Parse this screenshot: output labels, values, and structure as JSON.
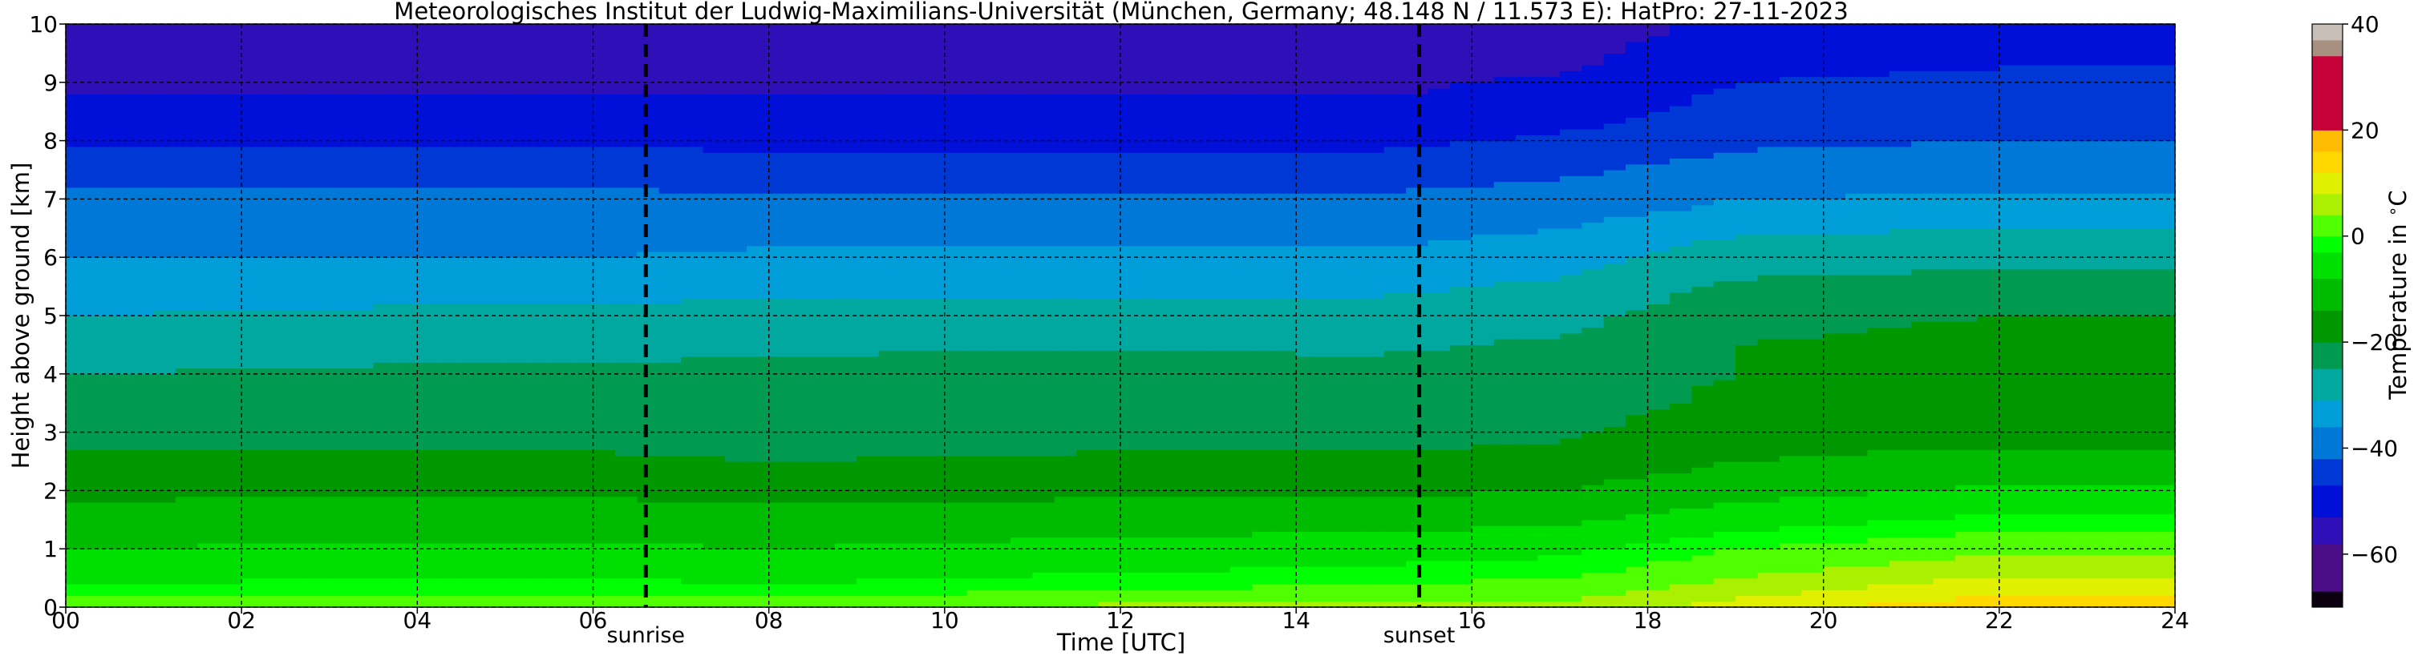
{
  "chart_data": {
    "type": "heatmap",
    "title": "Meteorologisches Institut der Ludwig-Maximilians-Universität (München, Germany; 48.148 N / 11.573 E):    HatPro: 27-11-2023",
    "xlabel": "Time [UTC]",
    "ylabel": "Height above ground [km]",
    "xlim": [
      0,
      24
    ],
    "ylim": [
      0,
      10
    ],
    "x_ticks": [
      0,
      2,
      4,
      6,
      8,
      10,
      12,
      14,
      16,
      18,
      20,
      22,
      24
    ],
    "x_tick_labels": [
      "00",
      "02",
      "04",
      "06",
      "08",
      "10",
      "12",
      "14",
      "16",
      "18",
      "20",
      "22",
      "24"
    ],
    "y_ticks": [
      0,
      1,
      2,
      3,
      4,
      5,
      6,
      7,
      8,
      9,
      10
    ],
    "y_tick_labels": [
      "0",
      "1",
      "2",
      "3",
      "4",
      "5",
      "6",
      "7",
      "8",
      "9",
      "10"
    ],
    "grid": true,
    "markers": [
      {
        "label": "sunrise",
        "x": 6.6
      },
      {
        "label": "sunset",
        "x": 15.4
      }
    ],
    "colorbar": {
      "label": "Temperature in $^\\circ$C",
      "range": [
        -70,
        40
      ],
      "ticks": [
        -60,
        -40,
        -20,
        0,
        20,
        40
      ],
      "tick_labels": [
        "−60",
        "−40",
        "−20",
        "0",
        "20",
        "40"
      ],
      "colors": [
        {
          "from": -70,
          "to": -67,
          "color": "#0a0010"
        },
        {
          "from": -67,
          "to": -58,
          "color": "#4b0d86"
        },
        {
          "from": -58,
          "to": -53,
          "color": "#2f10b8"
        },
        {
          "from": -53,
          "to": -47,
          "color": "#0010d8"
        },
        {
          "from": -47,
          "to": -42,
          "color": "#0038d6"
        },
        {
          "from": -42,
          "to": -36,
          "color": "#0078d8"
        },
        {
          "from": -36,
          "to": -31,
          "color": "#009ed8"
        },
        {
          "from": -31,
          "to": -25,
          "color": "#00a8a0"
        },
        {
          "from": -25,
          "to": -20,
          "color": "#009a50"
        },
        {
          "from": -20,
          "to": -14,
          "color": "#009800"
        },
        {
          "from": -14,
          "to": -8,
          "color": "#00bc00"
        },
        {
          "from": -8,
          "to": -3,
          "color": "#00e000"
        },
        {
          "from": -3,
          "to": 0,
          "color": "#00ff00"
        },
        {
          "from": 0,
          "to": 4,
          "color": "#50ff00"
        },
        {
          "from": 4,
          "to": 8,
          "color": "#aaf000"
        },
        {
          "from": 8,
          "to": 12,
          "color": "#e0f000"
        },
        {
          "from": 12,
          "to": 16,
          "color": "#ffd800"
        },
        {
          "from": 16,
          "to": 20,
          "color": "#ffbc00"
        },
        {
          "from": 20,
          "to": 34,
          "color": "#c8003a"
        },
        {
          "from": 34,
          "to": 37,
          "color": "#a89080"
        },
        {
          "from": 37,
          "to": 40,
          "color": "#c8c0b8"
        }
      ]
    },
    "heights_km": [
      0,
      0.3,
      0.6,
      1,
      1.5,
      2,
      2.5,
      3,
      3.5,
      4,
      4.5,
      5,
      5.5,
      6,
      6.5,
      7,
      7.5,
      8,
      8.5,
      9,
      9.5,
      10
    ],
    "profiles": [
      {
        "time": 0,
        "temperature": [
          3,
          -2,
          -5,
          -8,
          -12,
          -15,
          -19,
          -22,
          -24,
          -25,
          -28,
          -31,
          -33,
          -36,
          -38,
          -41,
          -44,
          -48,
          -52,
          -54,
          -56,
          -58
        ]
      },
      {
        "time": 4,
        "temperature": [
          3,
          -1,
          -4,
          -7,
          -11,
          -15,
          -19,
          -22,
          -24,
          -24,
          -27,
          -30,
          -33,
          -36,
          -38,
          -41,
          -44,
          -48,
          -52,
          -54,
          -56,
          -58
        ]
      },
      {
        "time": 6,
        "temperature": [
          3,
          -1,
          -4,
          -7,
          -11,
          -15,
          -19,
          -22,
          -24,
          -24,
          -27,
          -30,
          -33,
          -36,
          -38,
          -41,
          -44,
          -48,
          -52,
          -54,
          -56,
          -58
        ]
      },
      {
        "time": 8,
        "temperature": [
          3,
          -2,
          -5,
          -8,
          -12,
          -16,
          -20,
          -22,
          -24,
          -23,
          -26,
          -29,
          -32,
          -35,
          -38,
          -41,
          -45,
          -48,
          -52,
          -54,
          -56,
          -58
        ]
      },
      {
        "time": 12,
        "temperature": [
          5,
          0,
          -3,
          -6,
          -11,
          -15,
          -19,
          -22,
          -23,
          -22,
          -26,
          -29,
          -32,
          -35,
          -38,
          -41,
          -45,
          -48,
          -52,
          -54,
          -56,
          -58
        ]
      },
      {
        "time": 15,
        "temperature": [
          6,
          1,
          -2,
          -5,
          -10,
          -15,
          -19,
          -22,
          -23,
          -23,
          -26,
          -29,
          -32,
          -35,
          -38,
          -41,
          -45,
          -48,
          -52,
          -54,
          -56,
          -58
        ]
      },
      {
        "time": 17,
        "temperature": [
          5,
          2,
          -1,
          -4,
          -9,
          -14,
          -18,
          -21,
          -22,
          -22,
          -24,
          -27,
          -30,
          -33,
          -36,
          -40,
          -43,
          -46,
          -50,
          -52,
          -55,
          -57
        ]
      },
      {
        "time": 19,
        "temperature": [
          10,
          6,
          3,
          0,
          -5,
          -10,
          -14,
          -17,
          -19,
          -20,
          -20,
          -21,
          -24,
          -28,
          -32,
          -36,
          -40,
          -43,
          -45,
          -47,
          -49,
          -51
        ]
      },
      {
        "time": 22,
        "temperature": [
          15,
          11,
          7,
          3,
          -2,
          -7,
          -12,
          -16,
          -18,
          -19,
          -19,
          -20,
          -22,
          -27,
          -31,
          -35,
          -39,
          -42,
          -44,
          -46,
          -48,
          -50
        ]
      },
      {
        "time": 24,
        "temperature": [
          14,
          11,
          7,
          3,
          -2,
          -7,
          -12,
          -16,
          -18,
          -19,
          -19,
          -20,
          -22,
          -27,
          -31,
          -35,
          -39,
          -42,
          -44,
          -46,
          -48,
          -50
        ]
      }
    ]
  }
}
